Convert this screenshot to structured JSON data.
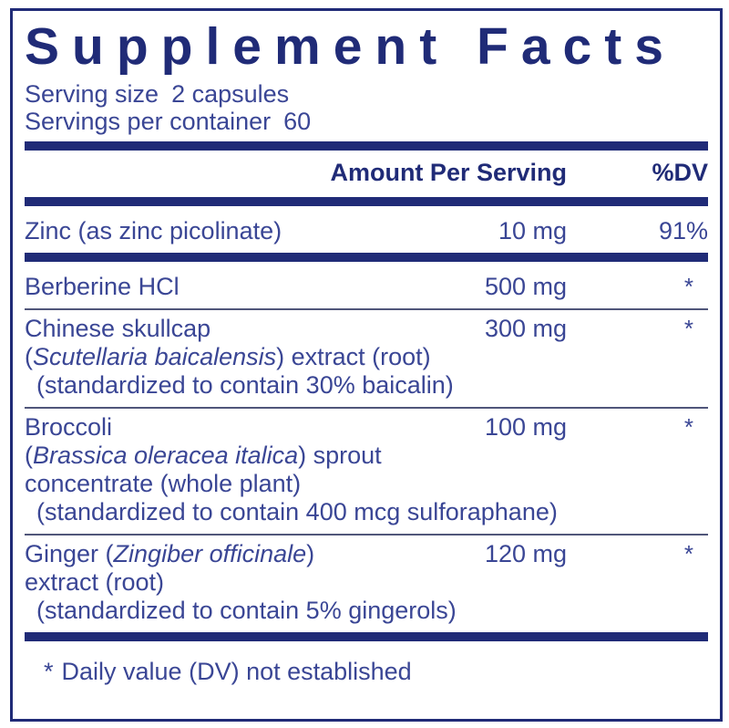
{
  "panel": {
    "title": "Supplement Facts",
    "serving_size_label": "Serving size",
    "serving_size_value": "2 capsules",
    "servings_per_container_label": "Servings per container",
    "servings_per_container_value": "60",
    "footnote_symbol": "*",
    "footnote_text": "Daily value (DV) not established"
  },
  "table": {
    "headers": {
      "amount": "Amount Per Serving",
      "dv": "%DV"
    },
    "rows": [
      {
        "name": "Zinc (as zinc picolinate)",
        "amount": "10 mg",
        "dv": "91%"
      },
      {
        "name": "Berberine HCl",
        "amount": "500 mg",
        "dv": "*"
      },
      {
        "name": "Chinese skullcap",
        "amount": "300 mg",
        "dv": "*",
        "line2_pre": "(",
        "line2_italic": "Scutellaria baicalensis",
        "line2_post": ") extract (root)",
        "line3": "(standardized to contain 30% baicalin)"
      },
      {
        "name": "Broccoli",
        "amount": "100 mg",
        "dv": "*",
        "line2_pre": "(",
        "line2_italic": "Brassica oleracea italica",
        "line2_post": ") sprout",
        "line3": "concentrate (whole plant)",
        "line4": "(standardized to contain 400 mcg sulforaphane)"
      },
      {
        "name_pre": "Ginger (",
        "name_italic": "Zingiber officinale",
        "name_post": ")",
        "amount": "120 mg",
        "dv": "*",
        "line2": "extract (root)",
        "line3": "(standardized to contain 5% gingerols)"
      }
    ]
  },
  "colors": {
    "navy": "#202b77",
    "body_text": "#3a4695",
    "thin_rule": "#50567a",
    "background": "#ffffff"
  }
}
